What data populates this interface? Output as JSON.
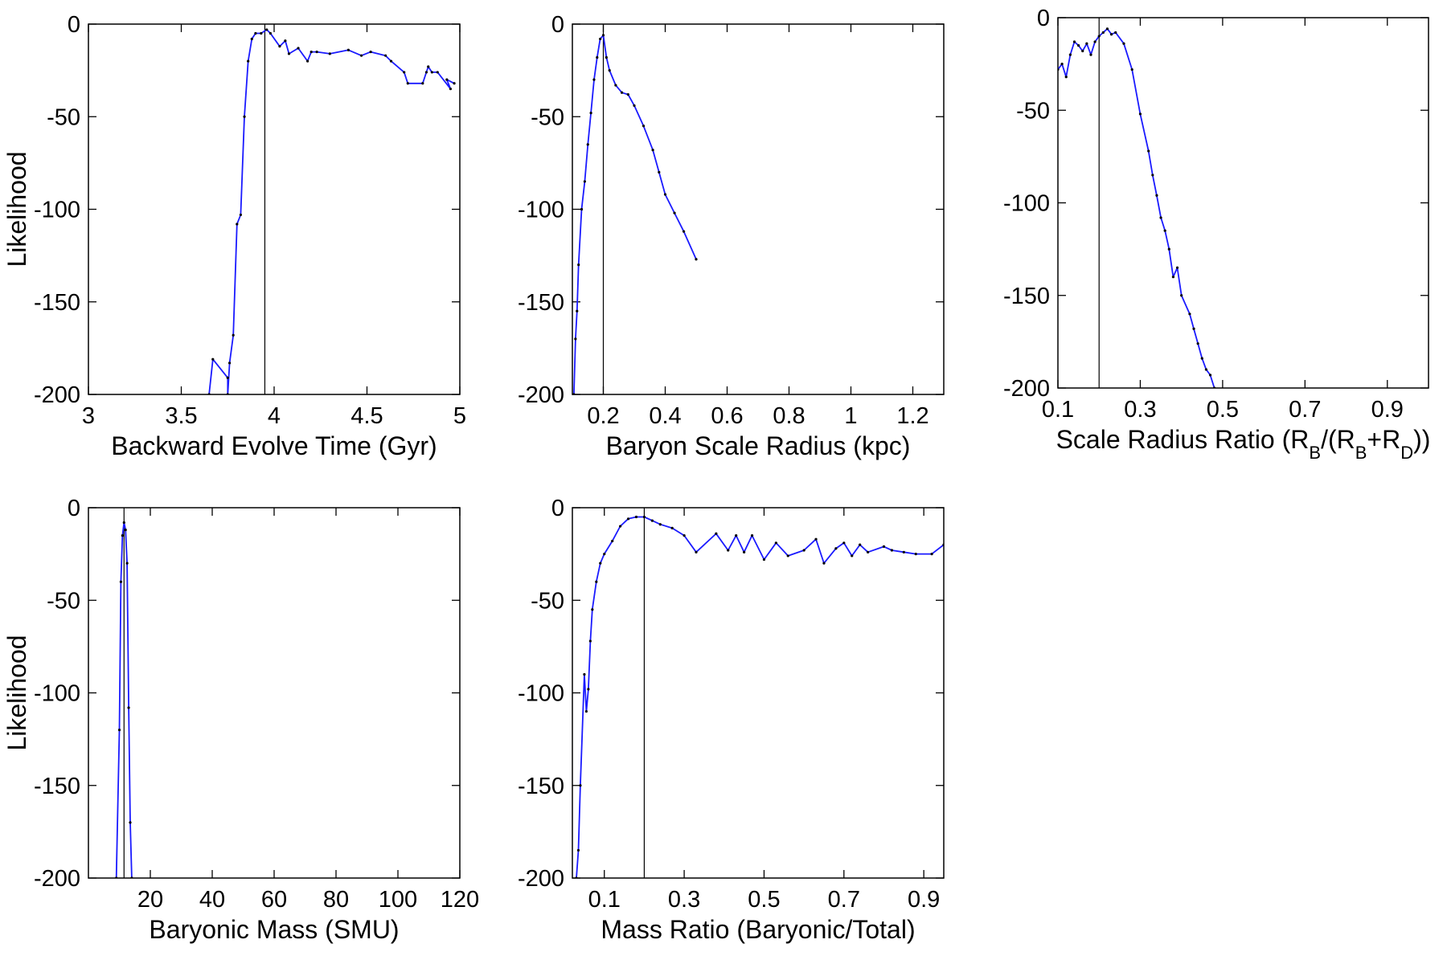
{
  "figure": {
    "background": "#ffffff",
    "line_color": "#1a1aff",
    "point_color": "#000000"
  },
  "chart_data": [
    {
      "type": "line",
      "xlabel": "Backward Evolve Time (Gyr)",
      "ylabel": "Likelihood",
      "xlim": [
        3,
        5
      ],
      "ylim": [
        -200,
        0
      ],
      "xticks": [
        "3",
        "3.5",
        "4",
        "4.5",
        "5"
      ],
      "yticks": [
        "0",
        "-50",
        "-100",
        "-150",
        "-200"
      ],
      "true_value": 3.95,
      "grid": false,
      "series": [
        {
          "x": [
            3.65,
            3.67,
            3.75,
            3.75,
            3.76,
            3.78,
            3.8,
            3.82,
            3.84,
            3.86,
            3.88,
            3.9,
            3.93,
            3.96,
            3.98,
            4.03,
            4.06,
            4.08,
            4.13,
            4.18,
            4.2,
            4.23,
            4.3,
            4.4,
            4.47,
            4.52,
            4.6,
            4.63,
            4.7,
            4.72,
            4.8,
            4.82,
            4.83,
            4.85,
            4.88,
            4.95,
            4.93,
            4.97
          ],
          "y": [
            -200,
            -181,
            -191,
            -200,
            -183,
            -168,
            -108,
            -103,
            -50,
            -20,
            -8,
            -5,
            -5,
            -3,
            -5,
            -12,
            -9,
            -16,
            -13,
            -20,
            -15,
            -15,
            -16,
            -14,
            -17,
            -15,
            -17,
            -20,
            -26,
            -32,
            -32,
            -26,
            -23,
            -26,
            -26,
            -35,
            -30,
            -32
          ]
        }
      ]
    },
    {
      "type": "line",
      "xlabel": "Baryon Scale Radius (kpc)",
      "ylabel": "",
      "xlim": [
        0.1,
        1.3
      ],
      "ylim": [
        -200,
        0
      ],
      "xticks": [
        "0.2",
        "0.4",
        "0.6",
        "0.8",
        "1",
        "1.2"
      ],
      "yticks": [
        "0",
        "-50",
        "-100",
        "-150",
        "-200"
      ],
      "true_value": 0.2,
      "grid": false,
      "series": [
        {
          "x": [
            0.105,
            0.11,
            0.115,
            0.12,
            0.13,
            0.14,
            0.15,
            0.16,
            0.17,
            0.18,
            0.19,
            0.2,
            0.21,
            0.22,
            0.24,
            0.26,
            0.28,
            0.3,
            0.33,
            0.36,
            0.38,
            0.4,
            0.43,
            0.46,
            0.5
          ],
          "y": [
            -200,
            -170,
            -155,
            -130,
            -100,
            -85,
            -65,
            -48,
            -30,
            -18,
            -8,
            -6,
            -18,
            -25,
            -33,
            -37,
            -38,
            -44,
            -55,
            -68,
            -80,
            -92,
            -102,
            -112,
            -127
          ]
        }
      ]
    },
    {
      "type": "line",
      "xlabel": "Scale Radius Ratio (R_B/(R_B+R_D))",
      "ylabel": "",
      "xlim": [
        0.1,
        1.0
      ],
      "ylim": [
        -200,
        0
      ],
      "xticks": [
        "0.1",
        "0.3",
        "0.5",
        "0.7",
        "0.9"
      ],
      "yticks": [
        "0",
        "-50",
        "-100",
        "-150",
        "-200"
      ],
      "true_value": 0.2,
      "grid": false,
      "series": [
        {
          "x": [
            0.1,
            0.11,
            0.12,
            0.13,
            0.14,
            0.15,
            0.16,
            0.17,
            0.18,
            0.19,
            0.2,
            0.21,
            0.22,
            0.23,
            0.24,
            0.26,
            0.28,
            0.3,
            0.32,
            0.33,
            0.34,
            0.35,
            0.36,
            0.37,
            0.38,
            0.39,
            0.4,
            0.42,
            0.43,
            0.44,
            0.45,
            0.46,
            0.47,
            0.48
          ],
          "y": [
            -28,
            -25,
            -32,
            -20,
            -13,
            -15,
            -18,
            -14,
            -20,
            -13,
            -10,
            -8,
            -6,
            -9,
            -8,
            -14,
            -28,
            -52,
            -72,
            -85,
            -96,
            -108,
            -115,
            -125,
            -140,
            -135,
            -150,
            -160,
            -168,
            -176,
            -184,
            -190,
            -193,
            -200
          ]
        }
      ]
    },
    {
      "type": "line",
      "xlabel": "Baryonic Mass (SMU)",
      "ylabel": "Likelihood",
      "xlim": [
        0,
        120
      ],
      "ylim": [
        -200,
        0
      ],
      "xticks": [
        "20",
        "40",
        "60",
        "80",
        "100",
        "120"
      ],
      "yticks": [
        "0",
        "-50",
        "-100",
        "-150",
        "-200"
      ],
      "true_value": 11.5,
      "grid": false,
      "series": [
        {
          "x": [
            9,
            10,
            10.5,
            11,
            11.5,
            12,
            12.5,
            13,
            13.5,
            14
          ],
          "y": [
            -200,
            -120,
            -40,
            -15,
            -8,
            -12,
            -30,
            -108,
            -170,
            -200
          ]
        }
      ]
    },
    {
      "type": "line",
      "xlabel": "Mass Ratio (Baryonic/Total)",
      "ylabel": "",
      "xlim": [
        0.02,
        0.95
      ],
      "ylim": [
        -200,
        0
      ],
      "xticks": [
        "0.1",
        "0.3",
        "0.5",
        "0.7",
        "0.9"
      ],
      "yticks": [
        "0",
        "-50",
        "-100",
        "-150",
        "-200"
      ],
      "true_value": 0.2,
      "grid": false,
      "series": [
        {
          "x": [
            0.03,
            0.035,
            0.04,
            0.05,
            0.055,
            0.06,
            0.065,
            0.07,
            0.08,
            0.09,
            0.1,
            0.12,
            0.14,
            0.16,
            0.18,
            0.2,
            0.22,
            0.24,
            0.27,
            0.3,
            0.33,
            0.38,
            0.41,
            0.43,
            0.45,
            0.47,
            0.5,
            0.53,
            0.56,
            0.6,
            0.63,
            0.65,
            0.68,
            0.7,
            0.72,
            0.74,
            0.76,
            0.8,
            0.82,
            0.85,
            0.88,
            0.92,
            0.95
          ],
          "y": [
            -200,
            -185,
            -150,
            -90,
            -110,
            -98,
            -72,
            -55,
            -40,
            -30,
            -25,
            -18,
            -10,
            -6,
            -5,
            -5,
            -7,
            -9,
            -11,
            -15,
            -24,
            -14,
            -23,
            -15,
            -24,
            -15,
            -28,
            -19,
            -26,
            -23,
            -17,
            -30,
            -22,
            -19,
            -26,
            -20,
            -24,
            -21,
            -23,
            -24,
            -25,
            -25,
            -20
          ]
        }
      ]
    }
  ]
}
